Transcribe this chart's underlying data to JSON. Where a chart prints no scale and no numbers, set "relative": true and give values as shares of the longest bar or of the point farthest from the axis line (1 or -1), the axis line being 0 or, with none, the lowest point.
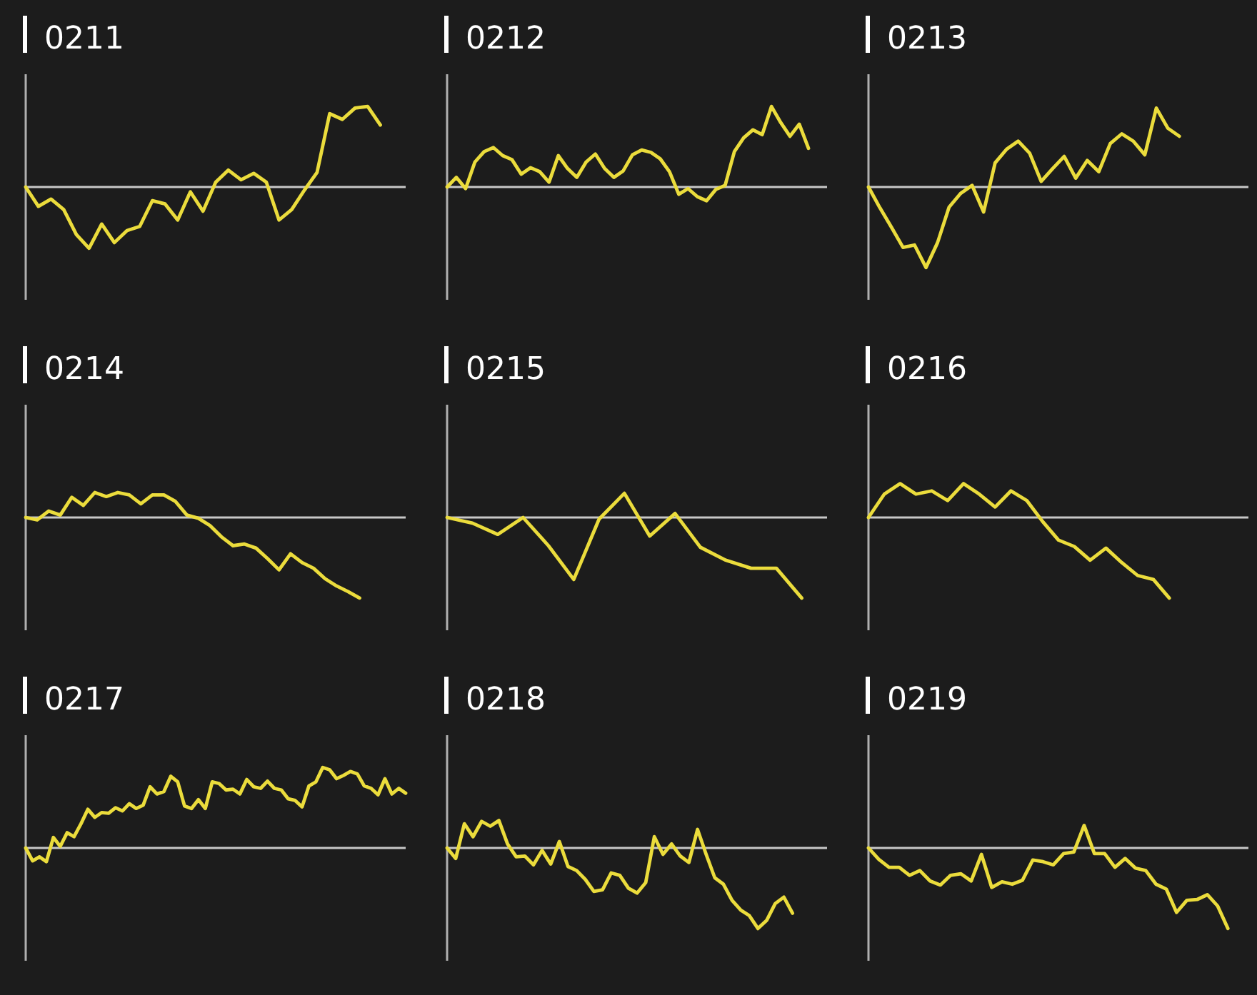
{
  "chart_data": [
    {
      "type": "line",
      "title": "0211",
      "relative": true,
      "color": "#ebdc3c",
      "categories": [
        null,
        null,
        null,
        null,
        null,
        null,
        null,
        null,
        null,
        null,
        null,
        null,
        null,
        null,
        null,
        null,
        null,
        null,
        null,
        null,
        null,
        null,
        null,
        null,
        null,
        null,
        null,
        null,
        null,
        null,
        null
      ],
      "values": [
        0,
        -0.24,
        -0.15,
        -0.28,
        -0.59,
        -0.76,
        -0.46,
        -0.69,
        -0.54,
        -0.49,
        -0.17,
        -0.21,
        -0.41,
        -0.06,
        -0.3,
        0.06,
        0.21,
        0.09,
        0.17,
        0.06,
        -0.41,
        -0.28,
        -0.04,
        0.18,
        0.91,
        0.84,
        0.98,
        1,
        0.77,
        null,
        null
      ]
    },
    {
      "type": "line",
      "title": "0212",
      "relative": true,
      "color": "#ebdc3c",
      "categories": [
        null,
        null,
        null,
        null,
        null,
        null,
        null,
        null,
        null,
        null,
        null,
        null,
        null,
        null,
        null,
        null,
        null,
        null,
        null,
        null,
        null,
        null,
        null,
        null,
        null,
        null,
        null,
        null,
        null,
        null,
        null,
        null,
        null,
        null,
        null,
        null,
        null,
        null,
        null,
        null,
        null,
        null
      ],
      "values": [
        0,
        0.12,
        -0.02,
        0.31,
        0.44,
        0.49,
        0.39,
        0.34,
        0.16,
        0.24,
        0.19,
        0.06,
        0.39,
        0.23,
        0.12,
        0.31,
        0.41,
        0.23,
        0.12,
        0.2,
        0.4,
        0.46,
        0.43,
        0.35,
        0.19,
        -0.09,
        -0.02,
        -0.12,
        -0.17,
        -0.03,
        0.02,
        0.44,
        0.61,
        0.71,
        0.65,
        1,
        0.8,
        0.63,
        0.78,
        0.48,
        null,
        null
      ]
    },
    {
      "type": "line",
      "title": "0213",
      "relative": true,
      "color": "#ebdc3c",
      "categories": [
        null,
        null,
        null,
        null,
        null,
        null,
        null,
        null,
        null,
        null,
        null,
        null,
        null,
        null,
        null,
        null,
        null,
        null,
        null,
        null,
        null,
        null,
        null,
        null,
        null,
        null,
        null,
        null,
        null,
        null,
        null,
        null,
        null,
        null
      ],
      "values": [
        0,
        -0.26,
        -0.5,
        -0.75,
        -0.72,
        -1,
        -0.69,
        -0.25,
        -0.08,
        0.02,
        -0.31,
        0.3,
        0.47,
        0.57,
        0.42,
        0.07,
        0.23,
        0.38,
        0.11,
        0.33,
        0.19,
        0.54,
        0.66,
        0.57,
        0.4,
        0.98,
        0.73,
        0.63,
        null,
        null,
        null,
        null,
        null,
        null
      ]
    },
    {
      "type": "line",
      "title": "0214",
      "relative": true,
      "color": "#ebdc3c",
      "categories": [
        null,
        null,
        null,
        null,
        null,
        null,
        null,
        null,
        null,
        null,
        null,
        null,
        null,
        null,
        null,
        null,
        null,
        null,
        null,
        null,
        null,
        null,
        null,
        null,
        null,
        null,
        null,
        null,
        null,
        null,
        null,
        null,
        null,
        null
      ],
      "values": [
        0,
        -0.03,
        0.08,
        0.03,
        0.25,
        0.15,
        0.31,
        0.26,
        0.31,
        0.28,
        0.17,
        0.28,
        0.28,
        0.2,
        0.03,
        -0.01,
        -0.1,
        -0.24,
        -0.35,
        -0.33,
        -0.38,
        -0.51,
        -0.65,
        -0.45,
        -0.56,
        -0.63,
        -0.76,
        -0.85,
        -0.92,
        -1,
        null,
        null,
        null,
        null
      ]
    },
    {
      "type": "line",
      "title": "0215",
      "relative": true,
      "color": "#ebdc3c",
      "categories": [
        null,
        null,
        null,
        null,
        null,
        null,
        null,
        null,
        null,
        null,
        null,
        null,
        null,
        null,
        null,
        null
      ],
      "values": [
        0,
        -0.07,
        -0.21,
        0,
        -0.35,
        -0.77,
        -0.02,
        0.3,
        -0.23,
        0.05,
        -0.37,
        -0.53,
        -0.63,
        -0.63,
        -1,
        null
      ]
    },
    {
      "type": "line",
      "title": "0216",
      "relative": true,
      "color": "#ebdc3c",
      "categories": [
        null,
        null,
        null,
        null,
        null,
        null,
        null,
        null,
        null,
        null,
        null,
        null,
        null,
        null,
        null,
        null,
        null,
        null,
        null,
        null,
        null,
        null,
        null,
        null,
        null
      ],
      "values": [
        0,
        0.29,
        0.42,
        0.29,
        0.33,
        0.21,
        0.42,
        0.29,
        0.13,
        0.33,
        0.21,
        -0.05,
        -0.28,
        -0.36,
        -0.53,
        -0.38,
        -0.56,
        -0.72,
        -0.77,
        -1,
        null,
        null,
        null,
        null,
        null
      ]
    },
    {
      "type": "line",
      "title": "0217",
      "relative": true,
      "color": "#ebdc3c",
      "categories": [
        null,
        null,
        null,
        null,
        null,
        null,
        null,
        null,
        null,
        null,
        null,
        null,
        null,
        null,
        null,
        null,
        null,
        null,
        null,
        null,
        null,
        null,
        null,
        null,
        null,
        null,
        null,
        null,
        null,
        null,
        null,
        null,
        null,
        null,
        null,
        null,
        null,
        null,
        null,
        null,
        null,
        null,
        null,
        null,
        null,
        null,
        null,
        null,
        null,
        null,
        null,
        null,
        null,
        null,
        null,
        null
      ],
      "values": [
        0,
        -0.16,
        -0.11,
        -0.17,
        0.13,
        0.02,
        0.19,
        0.14,
        0.3,
        0.48,
        0.38,
        0.44,
        0.43,
        0.5,
        0.46,
        0.55,
        0.49,
        0.53,
        0.76,
        0.67,
        0.7,
        0.89,
        0.82,
        0.52,
        0.49,
        0.6,
        0.49,
        0.82,
        0.8,
        0.72,
        0.73,
        0.67,
        0.85,
        0.76,
        0.74,
        0.83,
        0.74,
        0.72,
        0.61,
        0.59,
        0.51,
        0.77,
        0.82,
        1,
        0.97,
        0.86,
        0.9,
        0.95,
        0.92,
        0.77,
        0.74,
        0.66,
        0.86,
        0.67,
        0.74,
        0.68
      ]
    },
    {
      "type": "line",
      "title": "0218",
      "relative": true,
      "color": "#ebdc3c",
      "categories": [
        null,
        null,
        null,
        null,
        null,
        null,
        null,
        null,
        null,
        null,
        null,
        null,
        null,
        null,
        null,
        null,
        null,
        null,
        null,
        null,
        null,
        null,
        null,
        null,
        null,
        null,
        null,
        null,
        null,
        null,
        null,
        null,
        null,
        null,
        null,
        null,
        null,
        null,
        null,
        null,
        null,
        null,
        null,
        null,
        null
      ],
      "values": [
        0,
        -0.13,
        0.3,
        0.14,
        0.33,
        0.27,
        0.34,
        0.05,
        -0.11,
        -0.1,
        -0.21,
        -0.03,
        -0.2,
        0.08,
        -0.23,
        -0.28,
        -0.39,
        -0.54,
        -0.52,
        -0.31,
        -0.34,
        -0.5,
        -0.56,
        -0.43,
        0.14,
        -0.08,
        0.05,
        -0.1,
        -0.18,
        0.23,
        -0.08,
        -0.37,
        -0.45,
        -0.65,
        -0.77,
        -0.84,
        -1,
        -0.9,
        -0.69,
        -0.61,
        -0.81,
        null,
        null,
        null,
        null
      ]
    },
    {
      "type": "line",
      "title": "0219",
      "relative": true,
      "color": "#ebdc3c",
      "categories": [
        null,
        null,
        null,
        null,
        null,
        null,
        null,
        null,
        null,
        null,
        null,
        null,
        null,
        null,
        null,
        null,
        null,
        null,
        null,
        null,
        null,
        null,
        null,
        null,
        null,
        null,
        null,
        null,
        null,
        null,
        null,
        null,
        null,
        null,
        null,
        null,
        null,
        null
      ],
      "values": [
        0,
        -0.14,
        -0.24,
        -0.24,
        -0.34,
        -0.28,
        -0.41,
        -0.46,
        -0.34,
        -0.32,
        -0.41,
        -0.08,
        -0.49,
        -0.42,
        -0.45,
        -0.4,
        -0.15,
        -0.17,
        -0.21,
        -0.07,
        -0.05,
        0.28,
        -0.07,
        -0.07,
        -0.24,
        -0.13,
        -0.25,
        -0.28,
        -0.45,
        -0.51,
        -0.8,
        -0.65,
        -0.64,
        -0.58,
        -0.72,
        -1,
        null,
        null
      ]
    }
  ]
}
